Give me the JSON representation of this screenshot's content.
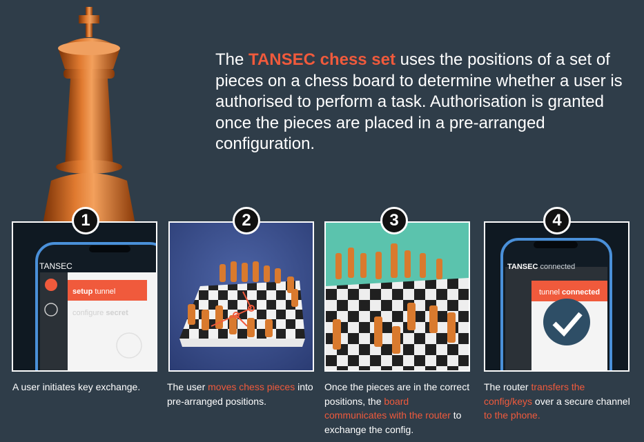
{
  "intro": {
    "pre": "The ",
    "highlight": "TANSEC chess set",
    "post": " uses the positions of a set of pieces on a chess board to determine whether a user is authorised to perform a task.  Authorisation is granted once the pieces are placed in a pre-arranged configuration."
  },
  "steps": [
    {
      "number": "1",
      "phone": {
        "app_title": "TANSEC",
        "menu_setup_bold": "setup",
        "menu_setup_rest": " tunnel",
        "menu_config_light": "configure ",
        "menu_config_bold": "secret"
      },
      "caption": {
        "text": "A user initiates key exchange."
      }
    },
    {
      "number": "2",
      "caption": {
        "pre": "The user ",
        "highlight": "moves chess pieces",
        "post": " into pre-arranged positions."
      }
    },
    {
      "number": "3",
      "caption": {
        "pre": "Once the pieces are in the correct positions, the ",
        "highlight": "board communicates with the router",
        "post": " to exchange the config."
      }
    },
    {
      "number": "4",
      "phone": {
        "app_title": "TANSEC",
        "status": " connected",
        "panel_pre": "tunnel ",
        "panel_bold": "connected"
      },
      "caption": {
        "pre": "The router ",
        "highlight1": "transfers the config/keys",
        "mid": " over a secure channel ",
        "highlight2": "to the phone."
      }
    }
  ],
  "colors": {
    "background": "#2f3d49",
    "accent": "#f05a3c",
    "teal": "#5bc3ad",
    "check_circle": "#2e4e66"
  },
  "icons": {
    "king": "chess-king-icon",
    "check": "check-icon"
  }
}
